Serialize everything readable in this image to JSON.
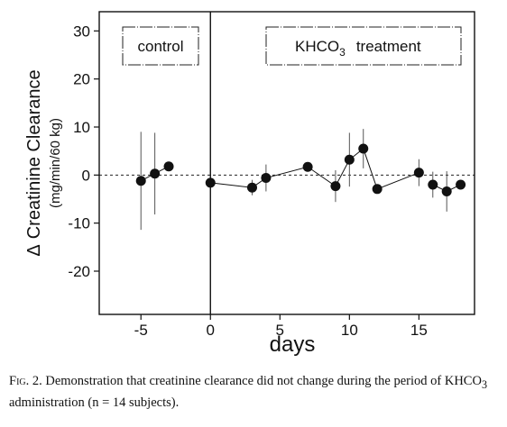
{
  "chart_data": {
    "type": "scatter",
    "xlabel": "days",
    "ylabel": "Creatinine Clearance",
    "ylabel_prefix": "Δ",
    "ylabel_units": "(mg/min/60 kg)",
    "xlim": [
      -8,
      19
    ],
    "ylim": [
      -29,
      34
    ],
    "x_ticks": [
      -5,
      0,
      5,
      10,
      15
    ],
    "x_tick_labels": [
      "-5",
      "0",
      "5",
      "10",
      "15"
    ],
    "y_ticks": [
      -20,
      -10,
      0,
      10,
      20,
      30
    ],
    "y_tick_labels": [
      "-20",
      "-10",
      "0",
      "10",
      "20",
      "30"
    ],
    "reference_line_y": 0,
    "divider_x": 0,
    "panels": {
      "control": "control",
      "treatment_main": "KHCO",
      "treatment_sub": "3",
      "treatment_word": "treatment"
    },
    "points": [
      {
        "x": -5,
        "y": -1.2,
        "err": 10.2
      },
      {
        "x": -4,
        "y": 0.3,
        "err": 8.5
      },
      {
        "x": -3,
        "y": 1.8,
        "err": 1.0
      },
      {
        "x": 0,
        "y": -1.6,
        "err": 0.8
      },
      {
        "x": 3,
        "y": -2.6,
        "err": 1.6
      },
      {
        "x": 4,
        "y": -0.6,
        "err": 2.8
      },
      {
        "x": 7,
        "y": 1.7,
        "err": 1.0
      },
      {
        "x": 9,
        "y": -2.3,
        "err": 3.3
      },
      {
        "x": 10,
        "y": 3.2,
        "err": 5.6
      },
      {
        "x": 11,
        "y": 5.5,
        "err": 4.1
      },
      {
        "x": 12,
        "y": -2.9,
        "err": 0.6
      },
      {
        "x": 15,
        "y": 0.5,
        "err": 2.8
      },
      {
        "x": 16,
        "y": -2.0,
        "err": 2.7
      },
      {
        "x": 17,
        "y": -3.4,
        "err": 4.2
      },
      {
        "x": 18,
        "y": -2.0,
        "err": 0.6
      }
    ],
    "line_segments": [
      [
        0,
        2
      ],
      [
        3,
        11
      ],
      [
        12,
        14
      ]
    ]
  },
  "caption": {
    "fig_label": "Fig",
    "fig_number": ". 2.",
    "text_a": " Demonstration that creatinine clearance did not change during the period of KHCO",
    "sub": "3",
    "text_b": " administration (n = 14 subjects)."
  }
}
